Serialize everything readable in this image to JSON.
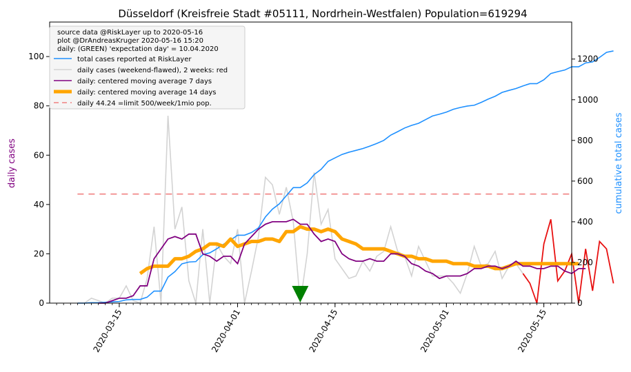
{
  "chart_data": {
    "type": "line",
    "title": "Düsseldorf (Kreisfreie Stadt #05111, Nordrhein-Westfalen) Population=619294",
    "ylabel_left": "daily cases",
    "ylabel_right": "cumulative total cases",
    "xlim": [
      "2020-03-05",
      "2020-05-19"
    ],
    "ylim_left": [
      0,
      114
    ],
    "ylim_right": [
      0,
      1382
    ],
    "yticks_left": [
      0,
      20,
      40,
      60,
      80,
      100
    ],
    "yticks_right": [
      0,
      200,
      400,
      600,
      800,
      1000,
      1200
    ],
    "xticks": [
      "2020-03-15",
      "2020-04-01",
      "2020-04-15",
      "2020-05-01",
      "2020-05-15"
    ],
    "info_lines": [
      "source data @RiskLayer up to 2020-05-16",
      "plot @DrAndreasKruger 2020-05-16 15:20",
      "daily: (GREEN) 'expectation day' = 10.04.2020"
    ],
    "legend_placement": "top-left",
    "legend": [
      {
        "label": "total cases reported at RiskLayer",
        "color": "#1e90ff",
        "style": "solid"
      },
      {
        "label": "daily cases (weekend-flawed), 2 weeks: red",
        "color": "#d3d3d3",
        "style": "solid"
      },
      {
        "label": "daily: centered moving average 7 days",
        "color": "#800080",
        "style": "solid"
      },
      {
        "label": "daily: centered moving average 14 days",
        "color": "#ffa500",
        "style": "thick"
      },
      {
        "label": "daily 44.24 =limit 500/week/1mio pop.",
        "color": "#f08080",
        "style": "dashed"
      }
    ],
    "colors": {
      "total": "#1e90ff",
      "daily": "#d3d3d3",
      "daily_recent": "#e81010",
      "ma7": "#800080",
      "ma14": "#ffa500",
      "limit": "#f08080",
      "expectation_marker": "#008000",
      "ylabel_left": "#800080",
      "ylabel_right": "#1e90ff"
    },
    "limit_value": 44.24,
    "limit_range": [
      "2020-03-09",
      "2020-05-19"
    ],
    "expectation_day": "2020-04-10",
    "series": [
      {
        "name": "total cases reported at RiskLayer",
        "axis": "right",
        "start_date": "2020-03-09",
        "values": [
          0,
          0,
          2,
          2,
          4,
          6,
          8,
          16,
          18,
          18,
          29,
          59,
          59,
          128,
          155,
          193,
          202,
          204,
          238,
          247,
          267,
          290,
          310,
          334,
          334,
          347,
          370,
          424,
          462,
          488,
          528,
          568,
          568,
          591,
          632,
          658,
          697,
          714,
          731,
          742,
          751,
          760,
          772,
          785,
          800,
          826,
          843,
          861,
          874,
          884,
          902,
          920,
          929,
          939,
          953,
          962,
          969,
          973,
          987,
          1003,
          1017,
          1036,
          1046,
          1055,
          1068,
          1079,
          1079,
          1098,
          1129,
          1138,
          1146,
          1162,
          1162,
          1181,
          1186,
          1208,
          1233,
          1240
        ]
      },
      {
        "name": "daily cases (weekend-flawed), 2 weeks: red",
        "axis": "left",
        "start_date": "2020-03-09",
        "values": [
          0,
          0,
          2,
          1,
          0,
          2,
          2,
          7,
          1,
          0,
          10,
          31,
          0,
          76,
          30,
          39,
          9,
          0,
          30,
          0,
          24,
          19,
          16,
          30,
          0,
          13,
          27,
          51,
          48,
          36,
          47,
          33,
          0,
          20,
          53,
          32,
          38,
          18,
          14,
          10,
          11,
          17,
          13,
          19,
          21,
          31,
          21,
          19,
          11,
          23,
          17,
          11,
          11,
          11,
          8,
          4,
          12,
          23,
          15,
          16,
          21,
          10,
          15,
          16,
          12,
          8,
          0,
          24,
          34,
          9,
          13,
          20,
          0,
          22,
          5,
          25,
          22,
          8
        ]
      },
      {
        "name": "daily: centered moving average 7 days",
        "axis": "left",
        "start_date": "2020-03-09",
        "values": [
          null,
          null,
          null,
          0,
          0,
          1,
          2,
          2,
          3,
          7,
          7,
          18,
          22,
          26,
          27,
          26,
          28,
          28,
          20,
          19,
          17,
          19,
          19,
          16,
          24,
          27,
          30,
          32,
          33,
          33,
          33,
          34,
          32,
          32,
          28,
          25,
          26,
          25,
          20,
          18,
          17,
          17,
          18,
          17,
          17,
          20,
          20,
          19,
          16,
          15,
          13,
          12,
          10,
          11,
          11,
          11,
          12,
          14,
          14,
          15,
          15,
          14,
          15,
          17,
          15,
          15,
          14,
          14,
          15,
          15,
          13,
          12,
          14,
          14
        ]
      },
      {
        "name": "daily: centered moving average 14 days",
        "axis": "left",
        "start_date": "2020-03-09",
        "values": [
          null,
          null,
          null,
          null,
          null,
          null,
          null,
          null,
          null,
          12,
          14,
          15,
          15,
          15,
          18,
          18,
          19,
          21,
          22,
          24,
          24,
          23,
          26,
          23,
          24,
          25,
          25,
          26,
          26,
          25,
          29,
          29,
          31,
          30,
          30,
          29,
          30,
          29,
          26,
          25,
          24,
          22,
          22,
          22,
          22,
          21,
          20,
          19,
          19,
          18,
          18,
          17,
          17,
          17,
          16,
          16,
          16,
          15,
          15,
          15,
          14,
          14,
          15,
          16,
          16,
          16,
          16,
          16,
          16,
          16,
          16,
          16,
          16
        ]
      }
    ],
    "recent_start_index": 64
  }
}
